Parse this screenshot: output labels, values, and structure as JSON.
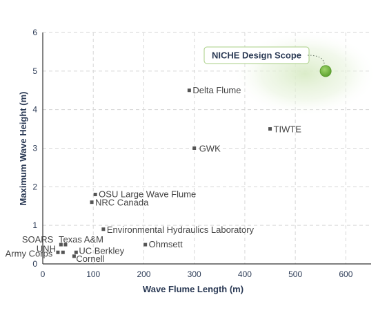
{
  "chart_data": {
    "type": "scatter",
    "title": "",
    "xlabel": "Wave Flume Length (m)",
    "ylabel": "Maximum Wave Height (m)",
    "xlim": [
      0,
      650
    ],
    "ylim": [
      0,
      6
    ],
    "x_ticks": [
      0,
      100,
      200,
      300,
      400,
      500,
      600
    ],
    "y_ticks": [
      0,
      1,
      2,
      3,
      4,
      5,
      6
    ],
    "grid": true,
    "points": [
      {
        "label": "Delta Flume",
        "x": 290,
        "y": 4.5
      },
      {
        "label": "TIWTE",
        "x": 450,
        "y": 3.5
      },
      {
        "label": "GWK",
        "x": 300,
        "y": 3.0
      },
      {
        "label": "OSU Large Wave Flume",
        "x": 104,
        "y": 1.8
      },
      {
        "label": "NRC Canada",
        "x": 97,
        "y": 1.6
      },
      {
        "label": "Environmental Hydraulics Laboratory",
        "x": 120,
        "y": 0.9
      },
      {
        "label": "SOARS",
        "x": 36,
        "y": 0.5
      },
      {
        "label": "Texas A&M",
        "x": 45,
        "y": 0.5
      },
      {
        "label": "UNH",
        "x": 30,
        "y": 0.3
      },
      {
        "label": "Army Corps",
        "x": 40,
        "y": 0.3
      },
      {
        "label": "UC Berkley",
        "x": 66,
        "y": 0.3
      },
      {
        "label": "Cornell",
        "x": 62,
        "y": 0.2
      },
      {
        "label": "Ohmsett",
        "x": 203,
        "y": 0.5
      }
    ],
    "highlight": {
      "label": "NICHE Design Scope",
      "x": 560,
      "y": 5.0,
      "color": "#7cbf45"
    }
  },
  "colors": {
    "axis_text": "#2b3a55",
    "point": "#555555",
    "label": "#444444",
    "grid": "#d6d6d6"
  }
}
